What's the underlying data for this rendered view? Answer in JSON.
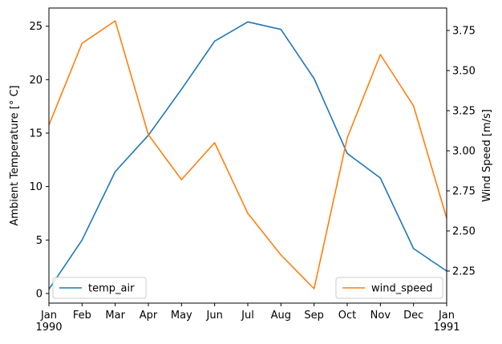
{
  "chart_data": {
    "type": "line",
    "x_tick_labels": [
      [
        "Jan",
        "1990"
      ],
      [
        "Feb"
      ],
      [
        "Mar"
      ],
      [
        "Apr"
      ],
      [
        "May"
      ],
      [
        "Jun"
      ],
      [
        "Jul"
      ],
      [
        "Aug"
      ],
      [
        "Sep"
      ],
      [
        "Oct"
      ],
      [
        "Nov"
      ],
      [
        "Dec"
      ],
      [
        "Jan",
        "1991"
      ]
    ],
    "x_dates": [
      "1990-01",
      "1990-02",
      "1990-03",
      "1990-04",
      "1990-05",
      "1990-06",
      "1990-07",
      "1990-08",
      "1990-09",
      "1990-10",
      "1990-11",
      "1990-12",
      "1991-01"
    ],
    "left_axis": {
      "label": "Ambient Temperature [$^\\circ$C]",
      "label_display": "Ambient Temperature [° C]",
      "ylim": [
        -0.9,
        26.7
      ],
      "ticks": [
        0,
        5,
        10,
        15,
        20,
        25
      ]
    },
    "right_axis": {
      "label": "Wind Speed [m/s]",
      "ylim": [
        2.05,
        3.89
      ],
      "ticks": [
        2.25,
        2.5,
        2.75,
        3.0,
        3.25,
        3.5,
        3.75
      ],
      "tick_labels": [
        "2.25",
        "2.50",
        "2.75",
        "3.00",
        "3.25",
        "3.50",
        "3.75"
      ]
    },
    "series": [
      {
        "name": "temp_air",
        "axis": "left",
        "color": "#1f77b4",
        "values": [
          0.4,
          5.0,
          11.4,
          14.8,
          19.1,
          23.6,
          25.4,
          24.7,
          20.1,
          13.1,
          10.8,
          4.2,
          2.1
        ]
      },
      {
        "name": "wind_speed",
        "axis": "right",
        "color": "#ff7f0e",
        "values": [
          3.16,
          3.67,
          3.81,
          3.1,
          2.82,
          3.05,
          2.61,
          2.35,
          2.14,
          3.08,
          3.6,
          3.28,
          2.58
        ]
      }
    ],
    "legends": [
      {
        "placement": "lower-left",
        "series": "temp_air"
      },
      {
        "placement": "lower-right",
        "series": "wind_speed"
      }
    ],
    "grid": false
  }
}
